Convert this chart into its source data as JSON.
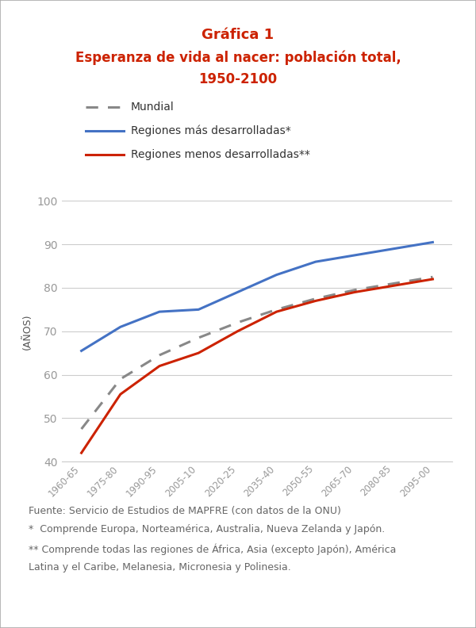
{
  "title_line1": "Gráfica 1",
  "title_line2": "Esperanza de vida al nacer: población total,",
  "title_line3": "1950-2100",
  "title_color": "#cc2200",
  "ylabel": "(AÑOS)",
  "x_labels": [
    "1960-65",
    "1975-80",
    "1990-95",
    "2005-10",
    "2020-25",
    "2035-40",
    "2050-55",
    "2065-70",
    "2080-85",
    "2095-00"
  ],
  "x_values": [
    1,
    2,
    3,
    4,
    5,
    6,
    7,
    8,
    9,
    10
  ],
  "mundial": {
    "label": "Mundial",
    "color": "#888888",
    "linestyle": "dashed",
    "linewidth": 2.2,
    "x": [
      1,
      2,
      3,
      4,
      5,
      6,
      7,
      8,
      9,
      10
    ],
    "y": [
      47.5,
      59.0,
      64.5,
      68.5,
      72.0,
      75.0,
      77.5,
      79.5,
      81.0,
      82.5
    ]
  },
  "desarrolladas": {
    "label": "Regiones más desarrolladas*",
    "color": "#4472c4",
    "linestyle": "solid",
    "linewidth": 2.2,
    "x": [
      1,
      2,
      3,
      4,
      5,
      6,
      7,
      8,
      9,
      10
    ],
    "y": [
      65.5,
      71.0,
      74.5,
      75.0,
      79.0,
      83.0,
      86.0,
      87.5,
      89.0,
      90.5
    ]
  },
  "menos_desarrolladas": {
    "label": "Regiones menos desarrolladas**",
    "color": "#cc2200",
    "linestyle": "solid",
    "linewidth": 2.2,
    "x": [
      1,
      2,
      3,
      4,
      5,
      6,
      7,
      8,
      9,
      10
    ],
    "y": [
      42.0,
      55.5,
      62.0,
      65.0,
      70.0,
      74.5,
      77.0,
      79.0,
      80.5,
      82.0
    ]
  },
  "ylim": [
    40,
    100
  ],
  "yticks": [
    40,
    50,
    60,
    70,
    80,
    90,
    100
  ],
  "background_color": "#ffffff",
  "border_color": "#aaaaaa",
  "grid_color": "#cccccc",
  "footnote_line1": "Fuente: Servicio de Estudios de MAPFRE (con datos de la ONU)",
  "footnote_line2": "*  Comprende Europa, Norteamérica, Australia, Nueva Zelanda y Japón.",
  "footnote_line3": "** Comprende todas las regiones de África, Asia (excepto Japón), América",
  "footnote_line4": "Latina y el Caribe, Melanesia, Micronesia y Polinesia.",
  "footnote_color": "#666666",
  "footnote_fontsize": 9.0,
  "tick_color": "#999999",
  "axis_label_color": "#555555"
}
